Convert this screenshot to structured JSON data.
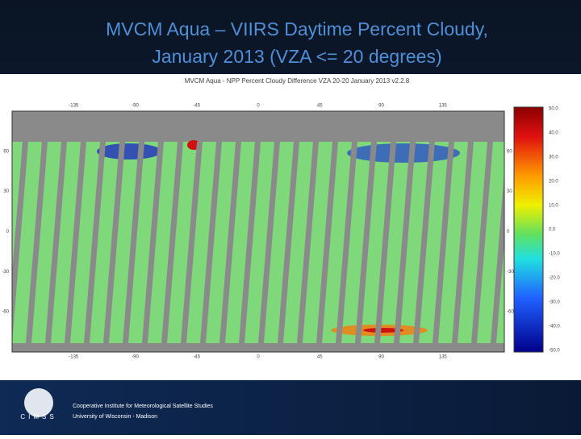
{
  "slide": {
    "title_line1": "MVCM Aqua – VIIRS Daytime Percent Cloudy,",
    "title_line2": "January 2013 (VZA <= 20 degrees)"
  },
  "map": {
    "title": "MVCM Aqua - NPP Percent Cloudy Difference VZA 20-20 January 2013 v2.2.8",
    "colorbar_labels": [
      "50.0",
      "40.0",
      "30.0",
      "20.0",
      "10.0",
      "0.0",
      "-10.0",
      "-20.0",
      "-30.0",
      "-40.0",
      "-50.0"
    ],
    "lon_labels": [
      "-135",
      "-90",
      "-45",
      "0",
      "45",
      "90",
      "135"
    ],
    "lat_labels": [
      "60",
      "30",
      "0",
      "-30",
      "-60"
    ]
  },
  "footer": {
    "line1": "Cooperative Institute for Meteorological Satellite Studies",
    "line2": "University of Wisconsin - Madison",
    "logo": "CIMSS"
  }
}
